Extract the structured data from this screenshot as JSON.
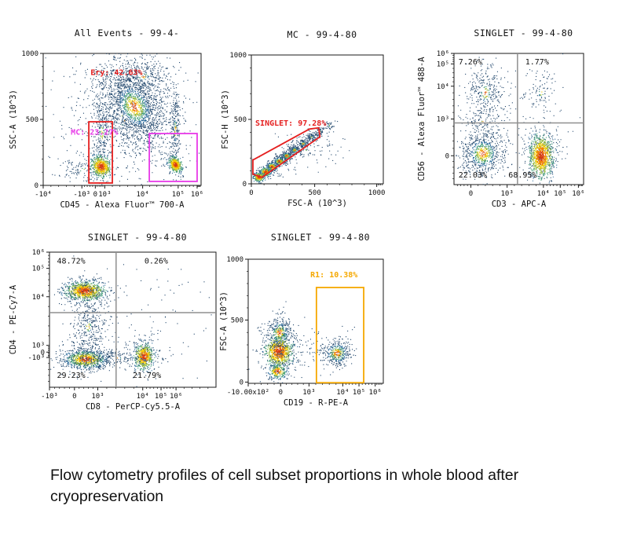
{
  "figure": {
    "caption": "Flow cytometry profiles of cell subset proportions in whole blood after cryopreservation"
  },
  "colors": {
    "axis": "#1a1a1a",
    "quadrant_line": "#8f8f8f",
    "gate_red": "#e51f1f",
    "gate_magenta": "#e83ae8",
    "gate_orange": "#f5a800",
    "dot_palette": [
      "#d63a10",
      "#f07e00",
      "#f0cd00",
      "#8db53a",
      "#3f9b7a",
      "#2c6b9c",
      "#24496e"
    ]
  },
  "chart_data": [
    {
      "type": "scatter",
      "name": "all-events",
      "title": "All Events - 99-4-",
      "xlabel": "CD45 - Alexa Fluor™ 700-A",
      "ylabel": "SSC-A (10^3)",
      "x_axis": {
        "scale": "biex",
        "ticks": [
          {
            "f": 0.0,
            "label": "-10⁴"
          },
          {
            "f": 0.245,
            "label": "-10³"
          },
          {
            "f": 0.33,
            "label": "0"
          },
          {
            "f": 0.39,
            "label": "10³"
          },
          {
            "f": 0.63,
            "label": "10⁴"
          },
          {
            "f": 0.855,
            "label": "10⁵"
          },
          {
            "f": 0.975,
            "label": "10⁶"
          }
        ]
      },
      "y_axis": {
        "scale": "lin",
        "ticks": [
          {
            "f": 0.0,
            "label": "1000"
          },
          {
            "f": 0.5,
            "label": "500"
          },
          {
            "f": 1.0,
            "label": "0"
          }
        ]
      },
      "gates": [
        {
          "name": "mc-gate",
          "shape": "rect",
          "color": "gate_red",
          "x1": 0.289,
          "y1": 0.518,
          "x2": 0.438,
          "y2": 0.982
        },
        {
          "name": "leukocyte-gate",
          "shape": "rect",
          "color": "gate_magenta",
          "x1": 0.672,
          "y1": 0.607,
          "x2": 0.975,
          "y2": 0.97
        }
      ],
      "labels": [
        {
          "name": "ery-percent",
          "text": "Ery: 42.63%",
          "x": 0.3,
          "y": 0.165,
          "color": "gate_red"
        },
        {
          "name": "mc-percent",
          "text": "MC: 23.27%",
          "x": 0.175,
          "y": 0.615,
          "color": "gate_magenta"
        }
      ],
      "populations": [
        {
          "cx": 0.5,
          "cy": 0.5,
          "sx": 0.3,
          "sy": 0.3,
          "n": 500,
          "heat": 0.08
        },
        {
          "cx": 0.575,
          "cy": 0.4,
          "sx": 0.1,
          "sy": 0.175,
          "n": 1900,
          "heat": 0.33,
          "rot": -0.5
        },
        {
          "cx": 0.63,
          "cy": 0.17,
          "sx": 0.1,
          "sy": 0.09,
          "n": 300,
          "heat": 0.15
        },
        {
          "cx": 0.365,
          "cy": 0.855,
          "sx": 0.03,
          "sy": 0.042,
          "n": 550,
          "heat": 1.15,
          "rot": -0.6
        },
        {
          "cx": 0.37,
          "cy": 0.6,
          "sx": 0.028,
          "sy": 0.16,
          "n": 280,
          "heat": 0.2
        },
        {
          "cx": 0.835,
          "cy": 0.84,
          "sx": 0.02,
          "sy": 0.033,
          "n": 420,
          "heat": 1.1,
          "rot": -0.5
        },
        {
          "cx": 0.835,
          "cy": 0.58,
          "sx": 0.016,
          "sy": 0.17,
          "n": 240,
          "heat": 0.22
        },
        {
          "cx": 0.25,
          "cy": 0.88,
          "sx": 0.08,
          "sy": 0.06,
          "n": 150,
          "heat": 0.12
        }
      ]
    },
    {
      "type": "scatter",
      "name": "mc",
      "title": "MC - 99-4-80",
      "xlabel": "FSC-A (10^3)",
      "ylabel": "FSC-H (10^3)",
      "x_axis": {
        "scale": "lin",
        "ticks": [
          {
            "f": 0.0,
            "label": "0"
          },
          {
            "f": 0.48,
            "label": "500"
          },
          {
            "f": 0.95,
            "label": "1000"
          }
        ]
      },
      "y_axis": {
        "scale": "lin",
        "ticks": [
          {
            "f": 0.0,
            "label": "1000"
          },
          {
            "f": 0.5,
            "label": "500"
          },
          {
            "f": 1.0,
            "label": "0"
          }
        ]
      },
      "gates": [
        {
          "name": "singlet-gate",
          "shape": "poly",
          "color": "gate_red",
          "pts": [
            [
              0.012,
              0.815
            ],
            [
              0.44,
              0.575
            ],
            [
              0.51,
              0.565
            ],
            [
              0.52,
              0.635
            ],
            [
              0.08,
              0.95
            ],
            [
              0.012,
              0.925
            ]
          ]
        }
      ],
      "labels": [
        {
          "name": "singlet-percent",
          "text": "SINGLET: 97.28%",
          "x": 0.03,
          "y": 0.55,
          "color": "gate_red"
        }
      ],
      "populations": [
        {
          "cx": 0.055,
          "cy": 0.945,
          "sx": 0.022,
          "sy": 0.018,
          "n": 240,
          "heat": 1.0
        },
        {
          "cx": 0.105,
          "cy": 0.905,
          "sx": 0.022,
          "sy": 0.018,
          "n": 220,
          "heat": 0.95
        },
        {
          "cx": 0.155,
          "cy": 0.865,
          "sx": 0.022,
          "sy": 0.018,
          "n": 200,
          "heat": 0.8
        },
        {
          "cx": 0.21,
          "cy": 0.822,
          "sx": 0.022,
          "sy": 0.018,
          "n": 190,
          "heat": 0.7
        },
        {
          "cx": 0.265,
          "cy": 0.78,
          "sx": 0.022,
          "sy": 0.018,
          "n": 170,
          "heat": 0.55
        },
        {
          "cx": 0.325,
          "cy": 0.735,
          "sx": 0.022,
          "sy": 0.018,
          "n": 150,
          "heat": 0.45
        },
        {
          "cx": 0.39,
          "cy": 0.685,
          "sx": 0.022,
          "sy": 0.018,
          "n": 120,
          "heat": 0.35
        },
        {
          "cx": 0.455,
          "cy": 0.635,
          "sx": 0.022,
          "sy": 0.018,
          "n": 90,
          "heat": 0.28
        },
        {
          "cx": 0.52,
          "cy": 0.59,
          "sx": 0.022,
          "sy": 0.018,
          "n": 60,
          "heat": 0.22
        },
        {
          "cx": 0.585,
          "cy": 0.545,
          "sx": 0.022,
          "sy": 0.018,
          "n": 35,
          "heat": 0.18
        },
        {
          "cx": 0.42,
          "cy": 0.73,
          "sx": 0.13,
          "sy": 0.075,
          "n": 100,
          "heat": 0.07
        },
        {
          "cx": 0.2,
          "cy": 0.88,
          "sx": 0.1,
          "sy": 0.05,
          "n": 40,
          "heat": 0.06
        }
      ]
    },
    {
      "type": "scatter",
      "name": "singlet-cd3-cd56",
      "title": "SINGLET - 99-4-80",
      "xlabel": "CD3 - APC-A",
      "ylabel": "CD56 - Alexa Fluor™ 488-A",
      "x_axis": {
        "scale": "biex",
        "ticks": [
          {
            "f": 0.13,
            "label": "0"
          },
          {
            "f": 0.41,
            "label": "10³"
          },
          {
            "f": 0.69,
            "label": "10⁴"
          },
          {
            "f": 0.82,
            "label": "10⁵"
          },
          {
            "f": 0.96,
            "label": "10⁶"
          }
        ]
      },
      "y_axis": {
        "scale": "biex",
        "ticks": [
          {
            "f": 0.0,
            "label": "10⁶"
          },
          {
            "f": 0.08,
            "label": "10⁵"
          },
          {
            "f": 0.25,
            "label": "10⁴"
          },
          {
            "f": 0.5,
            "label": "10³"
          },
          {
            "f": 0.78,
            "label": "0"
          }
        ]
      },
      "quadrant": {
        "vx": 0.49,
        "hy": 0.53
      },
      "gates": [],
      "labels": [
        {
          "name": "quadrant-ul-percent",
          "text": "7.26%",
          "x": 0.035,
          "y": 0.085,
          "color": "axis"
        },
        {
          "name": "quadrant-ur-percent",
          "text": "1.77%",
          "x": 0.55,
          "y": 0.085,
          "color": "axis"
        },
        {
          "name": "quadrant-ll-percent",
          "text": "22.03%",
          "x": 0.035,
          "y": 0.945,
          "color": "axis"
        },
        {
          "name": "quadrant-lr-percent",
          "text": "68.95%",
          "x": 0.42,
          "y": 0.945,
          "color": "axis"
        }
      ],
      "populations": [
        {
          "cx": 0.22,
          "cy": 0.76,
          "sx": 0.085,
          "sy": 0.085,
          "n": 700,
          "heat": 0.45
        },
        {
          "cx": 0.67,
          "cy": 0.78,
          "sx": 0.042,
          "sy": 0.075,
          "n": 900,
          "heat": 1.25
        },
        {
          "cx": 0.67,
          "cy": 0.76,
          "sx": 0.075,
          "sy": 0.11,
          "n": 250,
          "heat": 0.2
        },
        {
          "cx": 0.24,
          "cy": 0.3,
          "sx": 0.075,
          "sy": 0.12,
          "n": 330,
          "heat": 0.22
        },
        {
          "cx": 0.22,
          "cy": 0.52,
          "sx": 0.09,
          "sy": 0.06,
          "n": 80,
          "heat": 0.1
        },
        {
          "cx": 0.67,
          "cy": 0.3,
          "sx": 0.07,
          "sy": 0.11,
          "n": 90,
          "heat": 0.12
        },
        {
          "cx": 0.5,
          "cy": 0.55,
          "sx": 0.3,
          "sy": 0.25,
          "n": 120,
          "heat": 0.05
        }
      ]
    },
    {
      "type": "scatter",
      "name": "singlet-cd8-cd4",
      "title": "SINGLET - 99-4-80",
      "xlabel": "CD8 - PerCP-Cy5.5-A",
      "ylabel": "CD4 - PE-Cy7-A",
      "x_axis": {
        "scale": "biex",
        "ticks": [
          {
            "f": 0.0,
            "label": "-10³"
          },
          {
            "f": 0.15,
            "label": "0"
          },
          {
            "f": 0.29,
            "label": "10³"
          },
          {
            "f": 0.56,
            "label": "10⁴"
          },
          {
            "f": 0.67,
            "label": "10⁵"
          },
          {
            "f": 0.76,
            "label": "10⁶"
          }
        ]
      },
      "y_axis": {
        "scale": "biex",
        "ticks": [
          {
            "f": 0.0,
            "label": "10⁶"
          },
          {
            "f": 0.12,
            "label": "10⁵"
          },
          {
            "f": 0.33,
            "label": "10⁴"
          },
          {
            "f": 0.69,
            "label": "10³"
          },
          {
            "f": 0.74,
            "label": "0"
          },
          {
            "f": 0.78,
            "label": "-10³"
          }
        ]
      },
      "quadrant": {
        "vx": 0.4,
        "hy": 0.448
      },
      "gates": [],
      "labels": [
        {
          "name": "quadrant-ul-percent",
          "text": "48.72%",
          "x": 0.045,
          "y": 0.085,
          "color": "axis"
        },
        {
          "name": "quadrant-ur-percent",
          "text": "0.26%",
          "x": 0.57,
          "y": 0.085,
          "color": "axis"
        },
        {
          "name": "quadrant-ll-percent",
          "text": "29.23%",
          "x": 0.045,
          "y": 0.93,
          "color": "axis"
        },
        {
          "name": "quadrant-lr-percent",
          "text": "21.79%",
          "x": 0.5,
          "y": 0.93,
          "color": "axis"
        }
      ],
      "populations": [
        {
          "cx": 0.21,
          "cy": 0.285,
          "sx": 0.055,
          "sy": 0.032,
          "n": 850,
          "heat": 1.2
        },
        {
          "cx": 0.21,
          "cy": 0.29,
          "sx": 0.09,
          "sy": 0.055,
          "n": 200,
          "heat": 0.2
        },
        {
          "cx": 0.215,
          "cy": 0.79,
          "sx": 0.065,
          "sy": 0.035,
          "n": 700,
          "heat": 0.85
        },
        {
          "cx": 0.22,
          "cy": 0.77,
          "sx": 0.1,
          "sy": 0.07,
          "n": 200,
          "heat": 0.2
        },
        {
          "cx": 0.565,
          "cy": 0.77,
          "sx": 0.03,
          "sy": 0.048,
          "n": 550,
          "heat": 1.1
        },
        {
          "cx": 0.565,
          "cy": 0.76,
          "sx": 0.05,
          "sy": 0.08,
          "n": 120,
          "heat": 0.2
        },
        {
          "cx": 0.23,
          "cy": 0.55,
          "sx": 0.055,
          "sy": 0.13,
          "n": 380,
          "heat": 0.15
        },
        {
          "cx": 0.4,
          "cy": 0.78,
          "sx": 0.13,
          "sy": 0.035,
          "n": 180,
          "heat": 0.12
        },
        {
          "cx": 0.5,
          "cy": 0.5,
          "sx": 0.28,
          "sy": 0.27,
          "n": 100,
          "heat": 0.05
        }
      ]
    },
    {
      "type": "scatter",
      "name": "singlet-cd19",
      "title": "SINGLET - 99-4-80",
      "xlabel": "CD19 - R-PE-A",
      "ylabel": "FSC-A (10^3)",
      "x_axis": {
        "scale": "biex",
        "ticks": [
          {
            "f": 0.0,
            "label": "-10.00x10²"
          },
          {
            "f": 0.24,
            "label": "0"
          },
          {
            "f": 0.45,
            "label": "10³"
          },
          {
            "f": 0.7,
            "label": "10⁴"
          },
          {
            "f": 0.82,
            "label": "10⁵"
          },
          {
            "f": 0.94,
            "label": "10⁶"
          }
        ]
      },
      "y_axis": {
        "scale": "lin",
        "ticks": [
          {
            "f": 0.0,
            "label": "1000"
          },
          {
            "f": 0.49,
            "label": "500"
          },
          {
            "f": 0.99,
            "label": "0"
          }
        ]
      },
      "gates": [
        {
          "name": "r1-gate",
          "shape": "rect",
          "color": "gate_orange",
          "x1": 0.505,
          "y1": 0.228,
          "x2": 0.855,
          "y2": 0.995
        }
      ],
      "labels": [
        {
          "name": "r1-percent",
          "text": "R1: 10.38%",
          "x": 0.46,
          "y": 0.145,
          "color": "gate_orange"
        }
      ],
      "populations": [
        {
          "cx": 0.225,
          "cy": 0.74,
          "sx": 0.045,
          "sy": 0.055,
          "n": 800,
          "heat": 1.35
        },
        {
          "cx": 0.23,
          "cy": 0.59,
          "sx": 0.045,
          "sy": 0.065,
          "n": 350,
          "heat": 0.5
        },
        {
          "cx": 0.215,
          "cy": 0.9,
          "sx": 0.04,
          "sy": 0.035,
          "n": 250,
          "heat": 0.8
        },
        {
          "cx": 0.23,
          "cy": 0.72,
          "sx": 0.09,
          "sy": 0.13,
          "n": 200,
          "heat": 0.15
        },
        {
          "cx": 0.655,
          "cy": 0.755,
          "sx": 0.048,
          "sy": 0.048,
          "n": 330,
          "heat": 0.6
        },
        {
          "cx": 0.655,
          "cy": 0.74,
          "sx": 0.075,
          "sy": 0.075,
          "n": 90,
          "heat": 0.15
        },
        {
          "cx": 0.43,
          "cy": 0.72,
          "sx": 0.1,
          "sy": 0.09,
          "n": 60,
          "heat": 0.06
        }
      ]
    }
  ]
}
